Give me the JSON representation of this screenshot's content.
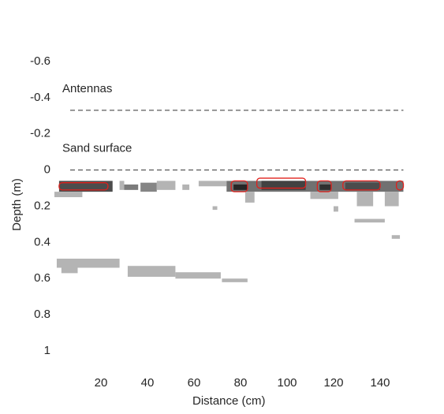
{
  "chart_data": {
    "type": "heatmap",
    "x_label": "Distance (cm)",
    "y_label": "Depth (m)",
    "xlim": [
      0,
      150
    ],
    "ylim": [
      -0.7,
      1.1
    ],
    "xticks": [
      20,
      40,
      60,
      80,
      100,
      120,
      140
    ],
    "yticks": [
      -0.6,
      -0.4,
      -0.2,
      0,
      0.2,
      0.4,
      0.6,
      0.8,
      1
    ],
    "y_reversed": true,
    "annotations": [
      {
        "text": "Antennas",
        "y": -0.33
      },
      {
        "text": "Sand surface",
        "y": 0
      }
    ],
    "contour_color": "#e0201c",
    "patches": [
      {
        "x0": 2,
        "x1": 25,
        "y0": 0.06,
        "y1": 0.12,
        "level": 0.75
      },
      {
        "x0": 0,
        "x1": 12,
        "y0": 0.12,
        "y1": 0.15,
        "level": 0.2
      },
      {
        "x0": 30,
        "x1": 36,
        "y0": 0.08,
        "y1": 0.11,
        "level": 0.5
      },
      {
        "x0": 28,
        "x1": 30,
        "y0": 0.06,
        "y1": 0.11,
        "level": 0.2
      },
      {
        "x0": 37,
        "x1": 44,
        "y0": 0.07,
        "y1": 0.12,
        "level": 0.45
      },
      {
        "x0": 44,
        "x1": 52,
        "y0": 0.06,
        "y1": 0.11,
        "level": 0.2
      },
      {
        "x0": 55,
        "x1": 58,
        "y0": 0.08,
        "y1": 0.11,
        "level": 0.2
      },
      {
        "x0": 62,
        "x1": 74,
        "y0": 0.06,
        "y1": 0.09,
        "level": 0.2
      },
      {
        "x0": 74,
        "x1": 150,
        "y0": 0.06,
        "y1": 0.12,
        "level": 0.55
      },
      {
        "x0": 77,
        "x1": 83,
        "y0": 0.08,
        "y1": 0.11,
        "level": 0.95
      },
      {
        "x0": 89,
        "x1": 108,
        "y0": 0.06,
        "y1": 0.11,
        "level": 0.8
      },
      {
        "x0": 114,
        "x1": 119,
        "y0": 0.08,
        "y1": 0.11,
        "level": 0.9
      },
      {
        "x0": 125,
        "x1": 140,
        "y0": 0.07,
        "y1": 0.11,
        "level": 0.75
      },
      {
        "x0": 82,
        "x1": 86,
        "y0": 0.12,
        "y1": 0.18,
        "level": 0.2
      },
      {
        "x0": 68,
        "x1": 70,
        "y0": 0.2,
        "y1": 0.22,
        "level": 0.2
      },
      {
        "x0": 110,
        "x1": 122,
        "y0": 0.12,
        "y1": 0.16,
        "level": 0.2
      },
      {
        "x0": 120,
        "x1": 122,
        "y0": 0.2,
        "y1": 0.23,
        "level": 0.2
      },
      {
        "x0": 130,
        "x1": 137,
        "y0": 0.12,
        "y1": 0.2,
        "level": 0.2
      },
      {
        "x0": 142,
        "x1": 148,
        "y0": 0.12,
        "y1": 0.2,
        "level": 0.2
      },
      {
        "x0": 129,
        "x1": 142,
        "y0": 0.27,
        "y1": 0.29,
        "level": 0.2
      },
      {
        "x0": 145,
        "x1": 148.5,
        "y0": 0.36,
        "y1": 0.38,
        "level": 0.2
      },
      {
        "x0": 1,
        "x1": 28,
        "y0": 0.49,
        "y1": 0.54,
        "level": 0.2
      },
      {
        "x0": 3,
        "x1": 10,
        "y0": 0.54,
        "y1": 0.57,
        "level": 0.2
      },
      {
        "x0": 31.5,
        "x1": 52,
        "y0": 0.53,
        "y1": 0.59,
        "level": 0.2
      },
      {
        "x0": 52,
        "x1": 71.5,
        "y0": 0.565,
        "y1": 0.6,
        "level": 0.2
      },
      {
        "x0": 72,
        "x1": 83,
        "y0": 0.6,
        "y1": 0.62,
        "level": 0.2
      }
    ],
    "contours": [
      {
        "x0": 2,
        "x1": 23,
        "y0": 0.07,
        "y1": 0.11
      },
      {
        "x0": 76,
        "x1": 83,
        "y0": 0.06,
        "y1": 0.12
      },
      {
        "x0": 87,
        "x1": 108,
        "y0": 0.045,
        "y1": 0.1
      },
      {
        "x0": 113,
        "x1": 119,
        "y0": 0.06,
        "y1": 0.12
      },
      {
        "x0": 124,
        "x1": 140,
        "y0": 0.06,
        "y1": 0.11
      },
      {
        "x0": 147,
        "x1": 150,
        "y0": 0.06,
        "y1": 0.11
      }
    ]
  }
}
